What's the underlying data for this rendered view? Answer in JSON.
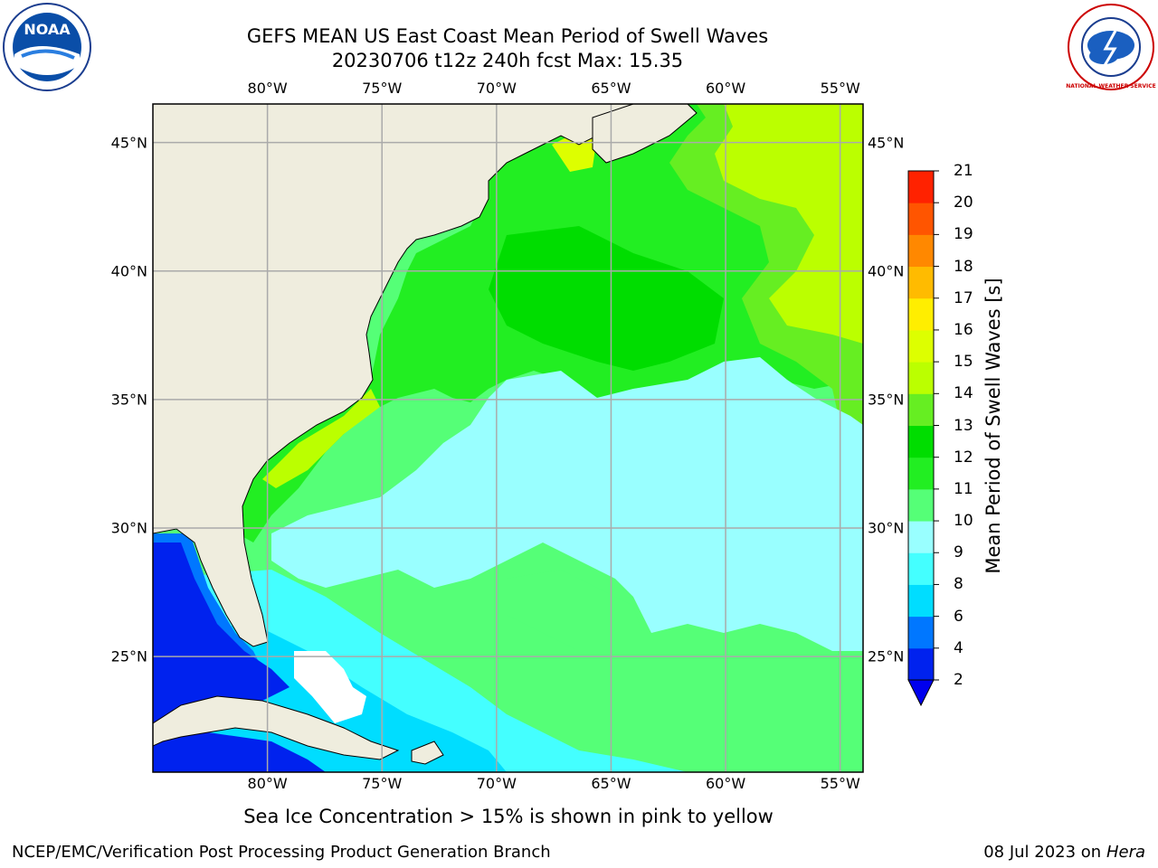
{
  "title": {
    "line1": "GEFS MEAN US East Coast Mean Period of Swell Waves",
    "line2": "20230706 t12z 240h fcst   Max: 15.35"
  },
  "map": {
    "lon_range": [
      -85,
      -54
    ],
    "lat_range": [
      20.5,
      46.5
    ],
    "lon_ticks": [
      {
        "value": -80,
        "label": "80°W"
      },
      {
        "value": -75,
        "label": "75°W"
      },
      {
        "value": -70,
        "label": "70°W"
      },
      {
        "value": -65,
        "label": "65°W"
      },
      {
        "value": -60,
        "label": "60°W"
      },
      {
        "value": -55,
        "label": "55°W"
      }
    ],
    "lat_ticks": [
      {
        "value": 45,
        "label": "45°N"
      },
      {
        "value": 40,
        "label": "40°N"
      },
      {
        "value": 35,
        "label": "35°N"
      },
      {
        "value": 30,
        "label": "30°N"
      },
      {
        "value": 25,
        "label": "25°N"
      }
    ],
    "grid": true,
    "land_color": "#efedde",
    "grid_color": "#aaaaaa"
  },
  "colorbar": {
    "title": "Mean Period of Swell Waves [s]",
    "labels": [
      "2",
      "4",
      "6",
      "8",
      "9",
      "10",
      "11",
      "12",
      "13",
      "14",
      "15",
      "16",
      "17",
      "18",
      "19",
      "20",
      "21"
    ],
    "colors": [
      "#0022ee",
      "#0077ff",
      "#00ddff",
      "#44ffff",
      "#99ffff",
      "#55ff77",
      "#22ee22",
      "#00dd00",
      "#66ee22",
      "#bbff00",
      "#ddff00",
      "#ffee00",
      "#ffbb00",
      "#ff8800",
      "#ff5500",
      "#ff2200"
    ],
    "under_color": "#0000ee"
  },
  "caption": "Sea Ice Concentration > 15% is shown in pink to yellow",
  "footer": {
    "left": "NCEP/EMC/Verification Post Processing Product Generation Branch",
    "right_date": "08 Jul 2023 on ",
    "right_host": "Hera"
  },
  "logos": {
    "left": {
      "text": "NOAA",
      "icon": "noaa-logo-icon"
    },
    "right": {
      "text": "NATIONAL WEATHER SERVICE",
      "icon": "nws-logo-icon"
    }
  }
}
